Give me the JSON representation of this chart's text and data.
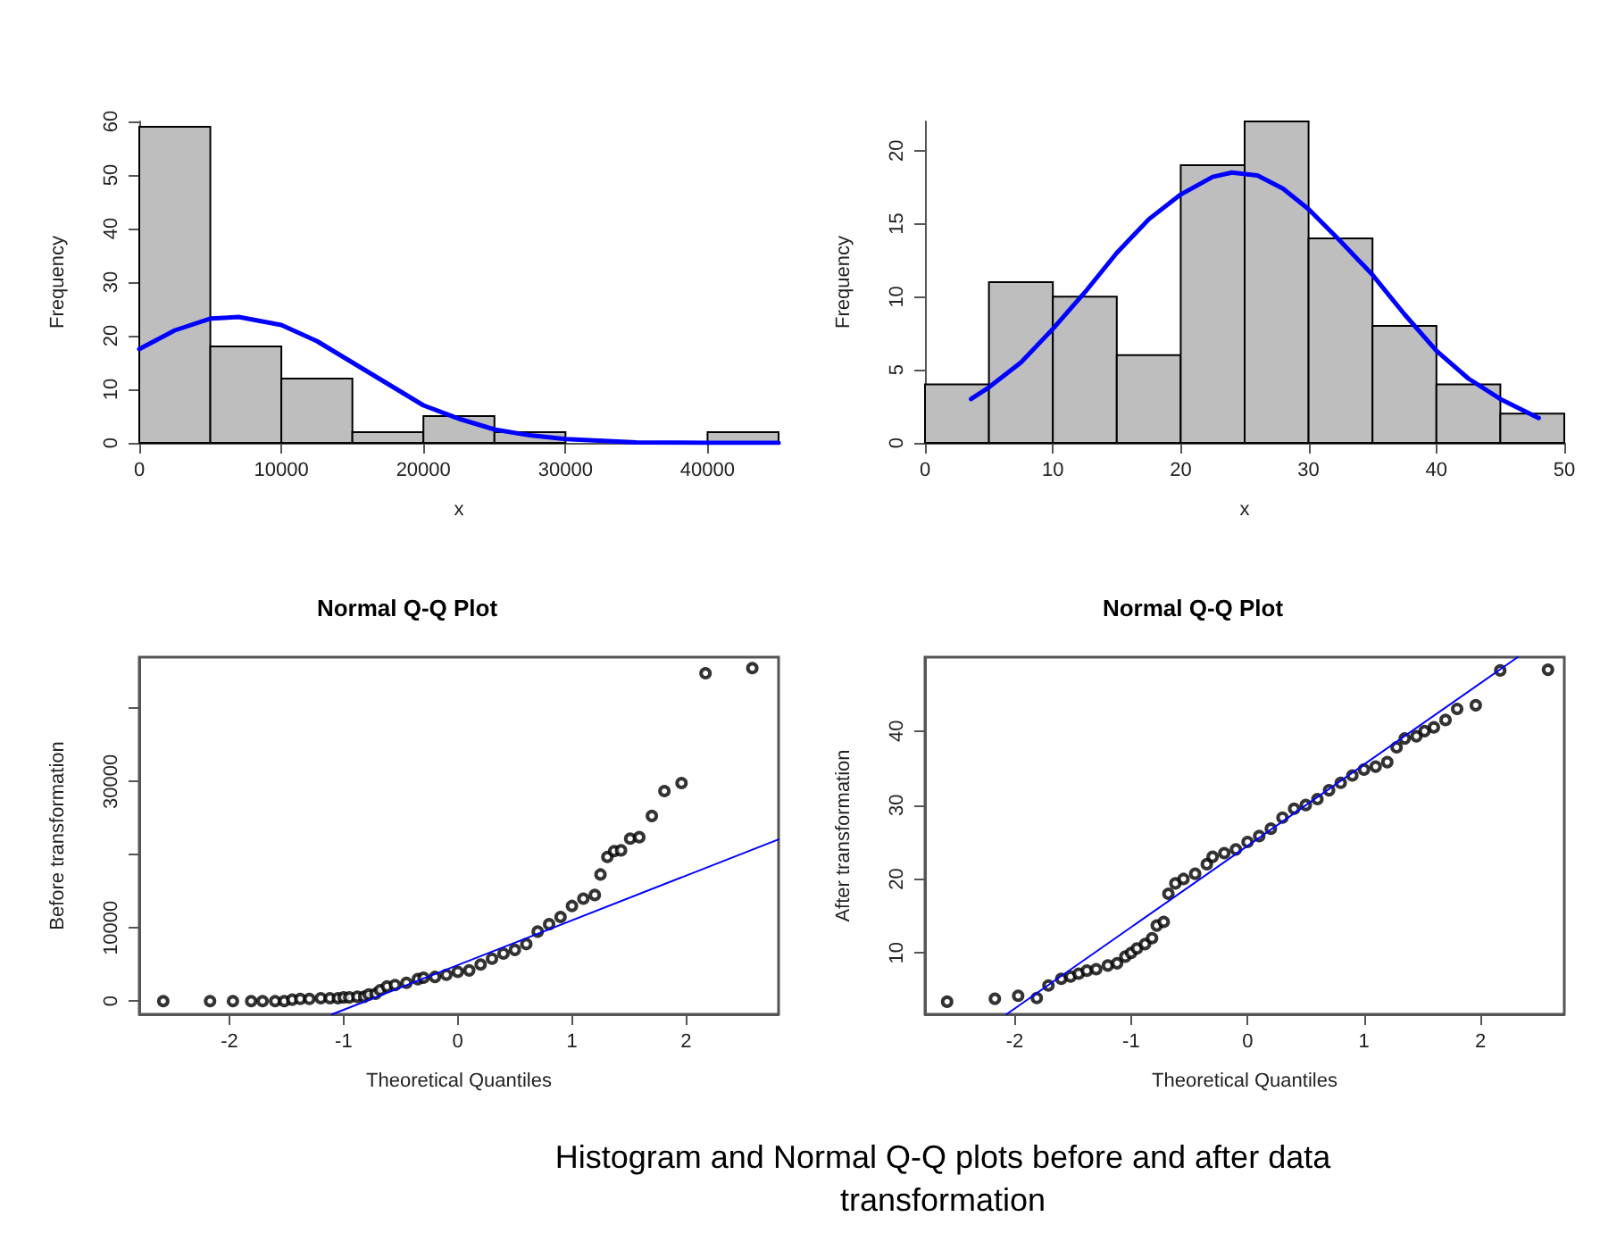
{
  "chart_data": [
    {
      "type": "histogram",
      "xlabel": "x",
      "ylabel": "Frequency",
      "bins": [
        0,
        5000,
        10000,
        15000,
        20000,
        25000,
        30000,
        35000,
        40000,
        45000
      ],
      "values": [
        59,
        18,
        12,
        2,
        5,
        2,
        0,
        0,
        2
      ],
      "color": "#bebebe",
      "xlim": [
        0,
        45000
      ],
      "ylim": [
        0,
        60
      ],
      "xticks": [
        0,
        10000,
        20000,
        30000,
        40000
      ],
      "yticks": [
        0,
        10,
        20,
        30,
        40,
        50,
        60
      ],
      "grid": false,
      "series": [
        {
          "type": "line",
          "color": "#0000ff",
          "x": [
            0,
            2500,
            5000,
            7000,
            10000,
            12500,
            15000,
            17500,
            20000,
            22500,
            25000,
            27500,
            30000,
            35000,
            40000,
            45000
          ],
          "values": [
            17.5,
            21,
            23.2,
            23.5,
            22,
            19,
            15,
            11,
            7,
            4.5,
            2.5,
            1.4,
            0.7,
            0.1,
            0,
            0
          ]
        }
      ]
    },
    {
      "type": "histogram",
      "xlabel": "x",
      "ylabel": "Frequency",
      "bins": [
        0,
        5,
        10,
        15,
        20,
        25,
        30,
        35,
        40,
        45,
        50
      ],
      "values": [
        4,
        11,
        10,
        6,
        19,
        22,
        14,
        8,
        4,
        2
      ],
      "color": "#bebebe",
      "xlim": [
        0,
        50
      ],
      "ylim": [
        0,
        22
      ],
      "xticks": [
        0,
        10,
        20,
        30,
        40,
        50
      ],
      "yticks": [
        0,
        5,
        10,
        15,
        20
      ],
      "grid": false,
      "series": [
        {
          "type": "line",
          "color": "#0000ff",
          "x": [
            3.6,
            5,
            7.5,
            10,
            12.5,
            15,
            17.5,
            20,
            22.5,
            24,
            26,
            28,
            30,
            32.5,
            35,
            37.5,
            40,
            42.5,
            45,
            48
          ],
          "values": [
            3,
            3.8,
            5.5,
            7.8,
            10.3,
            13,
            15.3,
            17,
            18.2,
            18.5,
            18.3,
            17.4,
            16,
            13.8,
            11.5,
            8.8,
            6.3,
            4.4,
            3,
            1.7
          ]
        }
      ]
    },
    {
      "type": "scatter",
      "title": "Normal Q-Q Plot",
      "xlabel": "Theoretical Quantiles",
      "ylabel": "Before transformation",
      "marker": "circle",
      "color": "#000000",
      "xlim": [
        -2.79,
        2.81
      ],
      "ylim": [
        -1800,
        47000
      ],
      "xticks": [
        -2,
        -1,
        0,
        1,
        2
      ],
      "yticks": [
        0,
        10000,
        {
          "value": 20000,
          "label": null
        },
        30000,
        {
          "value": 40000,
          "label": null
        }
      ],
      "grid": false,
      "x": [
        -2.58,
        -2.17,
        -1.97,
        -1.81,
        -1.71,
        -1.6,
        -1.52,
        -1.45,
        -1.38,
        -1.3,
        -1.2,
        -1.12,
        -1.05,
        -1.0,
        -0.95,
        -0.88,
        -0.82,
        -0.78,
        -0.72,
        -0.68,
        -0.62,
        -0.55,
        -0.45,
        -0.35,
        -0.3,
        -0.2,
        -0.1,
        0,
        0.1,
        0.2,
        0.3,
        0.4,
        0.5,
        0.6,
        0.7,
        0.8,
        0.9,
        1.0,
        1.1,
        1.2,
        1.25,
        1.31,
        1.37,
        1.43,
        1.51,
        1.59,
        1.7,
        1.81,
        1.96,
        2.17,
        2.58
      ],
      "values": [
        0,
        0,
        0,
        0,
        0,
        0,
        0,
        200,
        300,
        300,
        400,
        400,
        400,
        500,
        500,
        600,
        600,
        900,
        1000,
        1500,
        2000,
        2200,
        2500,
        3000,
        3200,
        3300,
        3600,
        4000,
        4200,
        5000,
        5800,
        6500,
        7000,
        7800,
        9500,
        10500,
        11500,
        13000,
        14000,
        14500,
        17300,
        19700,
        20500,
        20600,
        22200,
        22400,
        25300,
        28700,
        29800,
        44800,
        45500
      ],
      "series": [
        {
          "type": "line",
          "marker": "none",
          "color": "#0000ff",
          "x": [
            -1.1,
            2.81
          ],
          "values": [
            -1800,
            22100
          ]
        }
      ]
    },
    {
      "type": "scatter",
      "title": "Normal Q-Q Plot",
      "xlabel": "Theoretical Quantiles",
      "ylabel": "After transformation",
      "marker": "circle",
      "color": "#000000",
      "xlim": [
        -2.77,
        2.72
      ],
      "ylim": [
        1.7,
        50
      ],
      "xticks": [
        -2,
        -1,
        0,
        1,
        2
      ],
      "yticks": [
        10,
        20,
        30,
        40
      ],
      "grid": false,
      "x": [
        -2.58,
        -2.17,
        -1.97,
        -1.81,
        -1.71,
        -1.6,
        -1.52,
        -1.45,
        -1.38,
        -1.3,
        -1.2,
        -1.12,
        -1.05,
        -1.0,
        -0.95,
        -0.88,
        -0.82,
        -0.78,
        -0.72,
        -0.68,
        -0.62,
        -0.55,
        -0.45,
        -0.35,
        -0.3,
        -0.2,
        -0.1,
        0,
        0.1,
        0.2,
        0.3,
        0.4,
        0.5,
        0.6,
        0.7,
        0.8,
        0.9,
        1.0,
        1.1,
        1.2,
        1.28,
        1.35,
        1.45,
        1.52,
        1.6,
        1.7,
        1.8,
        1.96,
        2.17,
        2.58
      ],
      "values": [
        3.4,
        3.8,
        4.2,
        3.9,
        5.6,
        6.5,
        6.8,
        7.2,
        7.6,
        7.8,
        8.3,
        8.6,
        9.5,
        10,
        10.6,
        11.2,
        12,
        13.7,
        14.2,
        18,
        19.4,
        20,
        20.7,
        22,
        23,
        23.5,
        24,
        25,
        25.8,
        26.8,
        28.3,
        29.5,
        30,
        30.8,
        32,
        33,
        34,
        34.8,
        35.2,
        35.8,
        37.8,
        39,
        39.3,
        40,
        40.5,
        41.5,
        43,
        43.5,
        48.2,
        48.3
      ],
      "series": [
        {
          "type": "line",
          "marker": "none",
          "color": "#0000ff",
          "x": [
            -2.07,
            2.32
          ],
          "values": [
            1.7,
            50
          ]
        }
      ],
      "annotations": [
        "Histogram and Normal Q-Q plots before and after data transformation"
      ]
    }
  ]
}
